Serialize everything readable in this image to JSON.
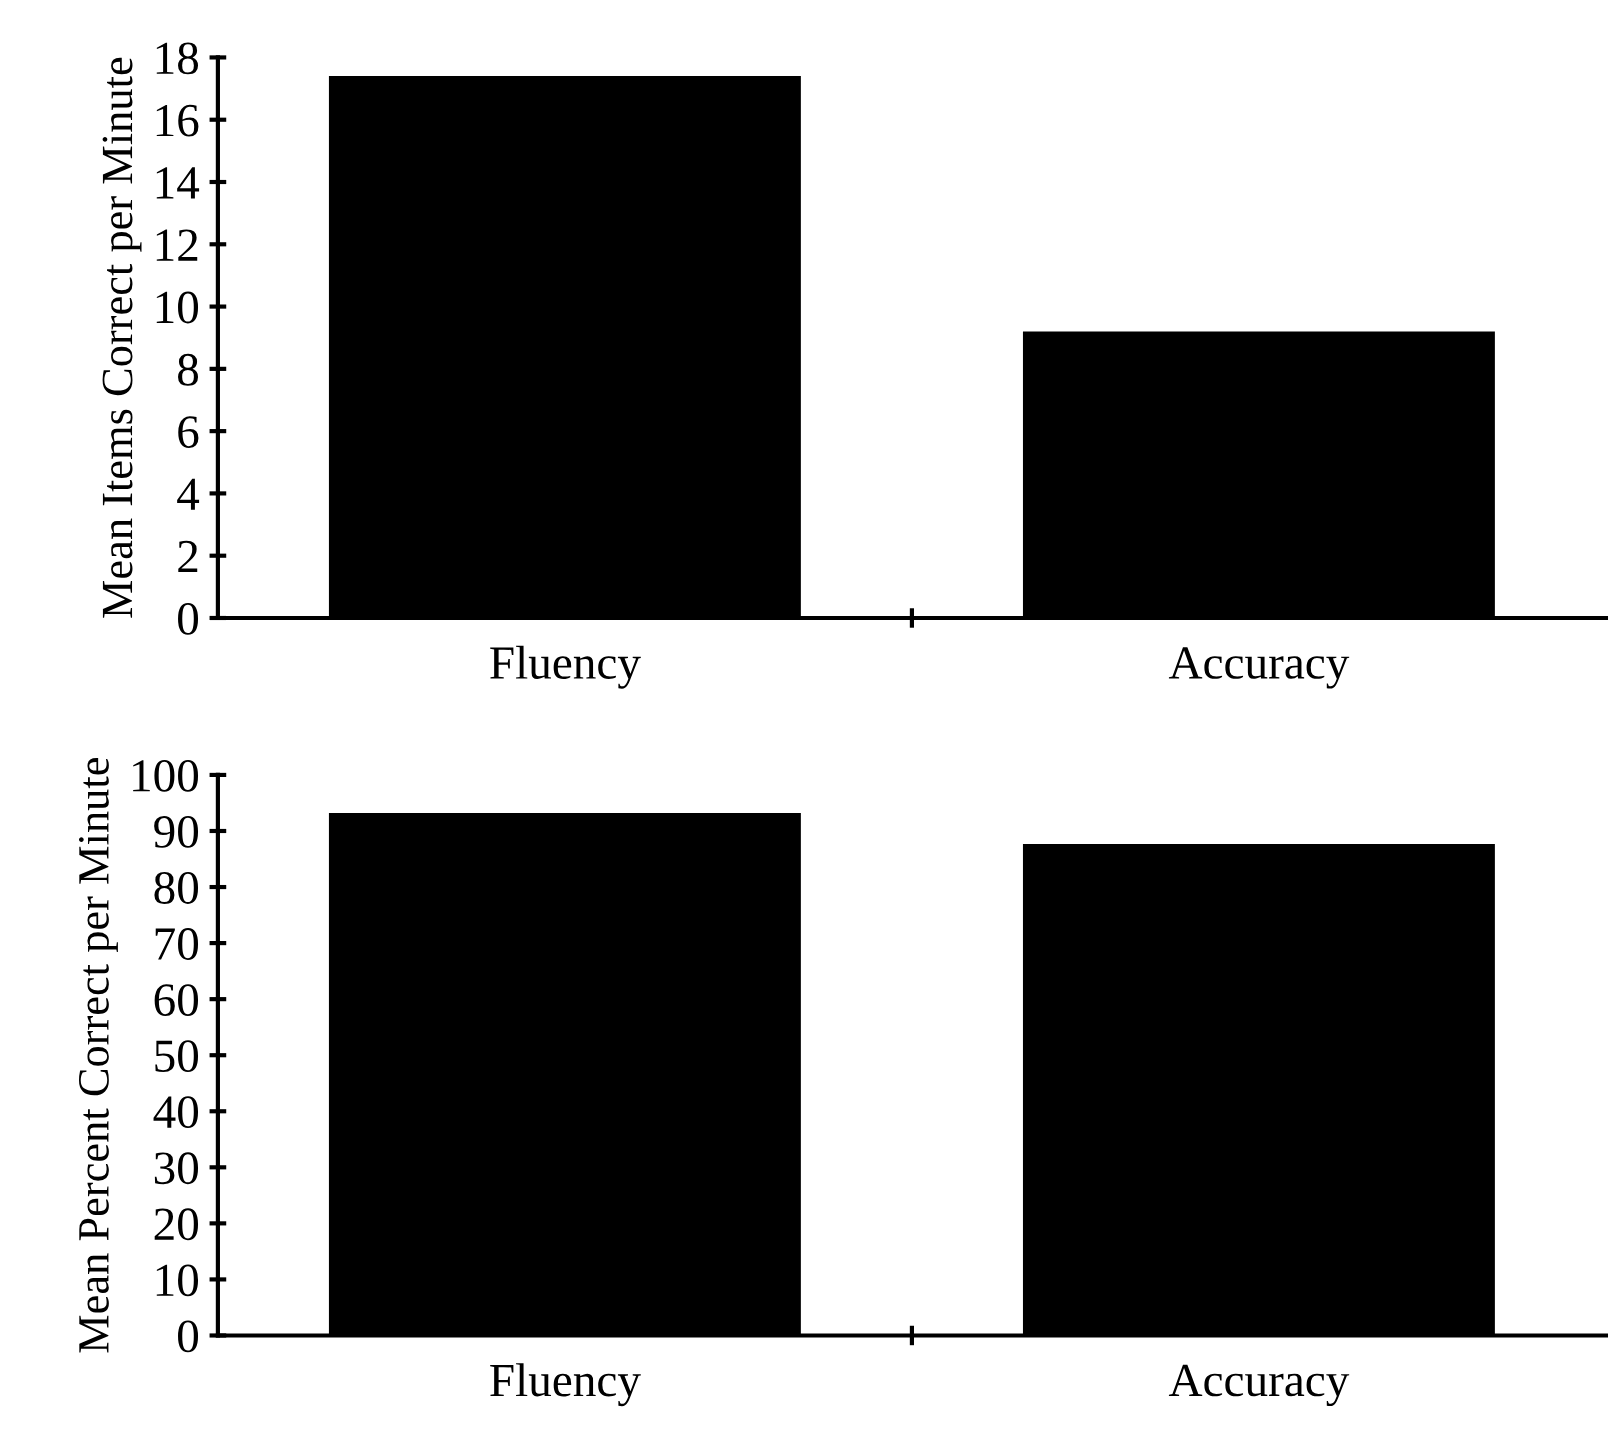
{
  "chart_data": [
    {
      "type": "bar",
      "ylabel": "Mean Items Correct per Minute",
      "categories": [
        "Fluency",
        "Accuracy"
      ],
      "values": [
        17.4,
        9.2
      ],
      "color": "#000000",
      "ylim": [
        0,
        18
      ],
      "yticks": [
        0,
        2,
        4,
        6,
        8,
        10,
        12,
        14,
        16,
        18
      ],
      "grid": false,
      "legend": false
    },
    {
      "type": "bar",
      "ylabel": "Mean Percent Correct per Minute",
      "categories": [
        "Fluency",
        "Accuracy"
      ],
      "values": [
        93.2,
        87.7
      ],
      "color": "#000000",
      "ylim": [
        0,
        100
      ],
      "yticks": [
        0,
        10,
        20,
        30,
        40,
        50,
        60,
        70,
        80,
        90,
        100
      ],
      "grid": false,
      "legend": false
    }
  ]
}
